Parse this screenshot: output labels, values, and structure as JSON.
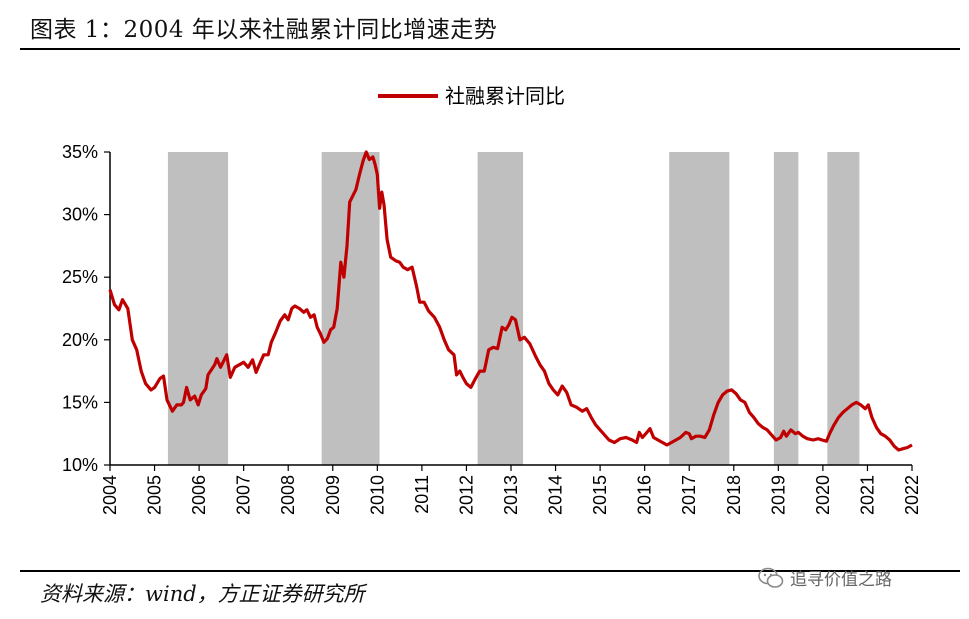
{
  "figure": {
    "title": "图表 1：2004 年以来社融累计同比增速走势",
    "source": "资料来源：wind，方正证券研究所",
    "watermark": "追寻价值之路"
  },
  "chart_data": {
    "type": "line",
    "title": "",
    "xlabel": "",
    "ylabel": "",
    "x_unit": "year",
    "xlim": [
      2004,
      2022
    ],
    "ylim": [
      10,
      35
    ],
    "y_ticks": [
      "10%",
      "15%",
      "20%",
      "25%",
      "30%",
      "35%"
    ],
    "x_ticks": [
      "2004",
      "2005",
      "2006",
      "2007",
      "2008",
      "2009",
      "2010",
      "2011",
      "2012",
      "2013",
      "2014",
      "2015",
      "2016",
      "2017",
      "2018",
      "2019",
      "2020",
      "2021",
      "2022"
    ],
    "legend": {
      "position": "top-center",
      "entries": [
        "社融累计同比"
      ]
    },
    "grid": false,
    "line_color": "#C00000",
    "shade_color": "#BFBFBF",
    "shaded_periods": [
      [
        2005.3,
        2006.65
      ],
      [
        2008.75,
        2010.05
      ],
      [
        2012.25,
        2013.27
      ],
      [
        2016.55,
        2017.9
      ],
      [
        2018.9,
        2019.45
      ],
      [
        2020.1,
        2020.82
      ]
    ],
    "series": [
      {
        "name": "社融累计同比",
        "points": [
          [
            2004.0,
            24.0
          ],
          [
            2004.1,
            22.8
          ],
          [
            2004.2,
            22.4
          ],
          [
            2004.28,
            23.2
          ],
          [
            2004.4,
            22.5
          ],
          [
            2004.5,
            20.0
          ],
          [
            2004.6,
            19.2
          ],
          [
            2004.7,
            17.5
          ],
          [
            2004.8,
            16.5
          ],
          [
            2004.92,
            16.0
          ],
          [
            2005.0,
            16.2
          ],
          [
            2005.12,
            16.9
          ],
          [
            2005.2,
            17.1
          ],
          [
            2005.28,
            15.2
          ],
          [
            2005.4,
            14.3
          ],
          [
            2005.5,
            14.8
          ],
          [
            2005.6,
            14.8
          ],
          [
            2005.65,
            15.0
          ],
          [
            2005.72,
            16.2
          ],
          [
            2005.8,
            15.2
          ],
          [
            2005.9,
            15.5
          ],
          [
            2005.98,
            14.8
          ],
          [
            2006.05,
            15.6
          ],
          [
            2006.15,
            16.1
          ],
          [
            2006.2,
            17.2
          ],
          [
            2006.35,
            18.0
          ],
          [
            2006.4,
            18.5
          ],
          [
            2006.48,
            17.8
          ],
          [
            2006.55,
            18.3
          ],
          [
            2006.62,
            18.8
          ],
          [
            2006.7,
            17.0
          ],
          [
            2006.8,
            17.8
          ],
          [
            2006.9,
            18.0
          ],
          [
            2007.0,
            18.2
          ],
          [
            2007.1,
            17.8
          ],
          [
            2007.2,
            18.4
          ],
          [
            2007.28,
            17.4
          ],
          [
            2007.35,
            18.0
          ],
          [
            2007.45,
            18.8
          ],
          [
            2007.55,
            18.8
          ],
          [
            2007.62,
            19.8
          ],
          [
            2007.72,
            20.6
          ],
          [
            2007.82,
            21.5
          ],
          [
            2007.92,
            22.0
          ],
          [
            2008.0,
            21.6
          ],
          [
            2008.08,
            22.5
          ],
          [
            2008.15,
            22.7
          ],
          [
            2008.25,
            22.5
          ],
          [
            2008.35,
            22.2
          ],
          [
            2008.42,
            22.4
          ],
          [
            2008.5,
            21.8
          ],
          [
            2008.58,
            22.0
          ],
          [
            2008.65,
            21.0
          ],
          [
            2008.72,
            20.5
          ],
          [
            2008.8,
            19.8
          ],
          [
            2008.88,
            20.1
          ],
          [
            2008.95,
            20.8
          ],
          [
            2009.02,
            21.0
          ],
          [
            2009.1,
            22.5
          ],
          [
            2009.18,
            26.2
          ],
          [
            2009.25,
            25.0
          ],
          [
            2009.32,
            27.5
          ],
          [
            2009.38,
            31.0
          ],
          [
            2009.45,
            31.5
          ],
          [
            2009.52,
            32.0
          ],
          [
            2009.6,
            33.2
          ],
          [
            2009.68,
            34.3
          ],
          [
            2009.75,
            35.0
          ],
          [
            2009.82,
            34.4
          ],
          [
            2009.9,
            34.6
          ],
          [
            2009.95,
            34.0
          ],
          [
            2010.0,
            33.2
          ],
          [
            2010.05,
            30.5
          ],
          [
            2010.1,
            31.8
          ],
          [
            2010.15,
            30.8
          ],
          [
            2010.22,
            28.0
          ],
          [
            2010.3,
            26.6
          ],
          [
            2010.42,
            26.3
          ],
          [
            2010.5,
            26.2
          ],
          [
            2010.58,
            25.8
          ],
          [
            2010.68,
            25.6
          ],
          [
            2010.78,
            25.8
          ],
          [
            2010.88,
            24.3
          ],
          [
            2010.95,
            23.0
          ],
          [
            2011.05,
            23.0
          ],
          [
            2011.15,
            22.3
          ],
          [
            2011.28,
            21.8
          ],
          [
            2011.4,
            21.0
          ],
          [
            2011.5,
            20.0
          ],
          [
            2011.6,
            19.2
          ],
          [
            2011.72,
            18.8
          ],
          [
            2011.78,
            17.2
          ],
          [
            2011.85,
            17.5
          ],
          [
            2011.92,
            17.0
          ],
          [
            2012.0,
            16.5
          ],
          [
            2012.1,
            16.2
          ],
          [
            2012.2,
            16.9
          ],
          [
            2012.3,
            17.5
          ],
          [
            2012.4,
            17.5
          ],
          [
            2012.5,
            19.2
          ],
          [
            2012.6,
            19.4
          ],
          [
            2012.7,
            19.3
          ],
          [
            2012.8,
            21.0
          ],
          [
            2012.88,
            20.8
          ],
          [
            2012.95,
            21.2
          ],
          [
            2013.02,
            21.8
          ],
          [
            2013.1,
            21.6
          ],
          [
            2013.2,
            20.0
          ],
          [
            2013.3,
            20.2
          ],
          [
            2013.42,
            19.7
          ],
          [
            2013.55,
            18.7
          ],
          [
            2013.65,
            18.0
          ],
          [
            2013.75,
            17.5
          ],
          [
            2013.85,
            16.5
          ],
          [
            2013.95,
            16.0
          ],
          [
            2014.05,
            15.6
          ],
          [
            2014.15,
            16.3
          ],
          [
            2014.25,
            15.8
          ],
          [
            2014.35,
            14.8
          ],
          [
            2014.48,
            14.6
          ],
          [
            2014.6,
            14.3
          ],
          [
            2014.7,
            14.5
          ],
          [
            2014.8,
            13.8
          ],
          [
            2014.9,
            13.2
          ],
          [
            2015.0,
            12.8
          ],
          [
            2015.1,
            12.4
          ],
          [
            2015.2,
            12.0
          ],
          [
            2015.32,
            11.8
          ],
          [
            2015.45,
            12.1
          ],
          [
            2015.58,
            12.2
          ],
          [
            2015.72,
            12.0
          ],
          [
            2015.82,
            11.8
          ],
          [
            2015.88,
            12.6
          ],
          [
            2015.95,
            12.2
          ],
          [
            2016.05,
            12.6
          ],
          [
            2016.12,
            12.9
          ],
          [
            2016.2,
            12.2
          ],
          [
            2016.3,
            12.0
          ],
          [
            2016.4,
            11.8
          ],
          [
            2016.5,
            11.6
          ],
          [
            2016.6,
            11.8
          ],
          [
            2016.7,
            12.0
          ],
          [
            2016.8,
            12.2
          ],
          [
            2016.92,
            12.6
          ],
          [
            2017.0,
            12.5
          ],
          [
            2017.05,
            12.1
          ],
          [
            2017.15,
            12.3
          ],
          [
            2017.25,
            12.3
          ],
          [
            2017.35,
            12.2
          ],
          [
            2017.45,
            12.8
          ],
          [
            2017.55,
            14.0
          ],
          [
            2017.65,
            15.0
          ],
          [
            2017.75,
            15.6
          ],
          [
            2017.85,
            15.9
          ],
          [
            2017.95,
            16.0
          ],
          [
            2018.05,
            15.7
          ],
          [
            2018.15,
            15.2
          ],
          [
            2018.25,
            15.0
          ],
          [
            2018.35,
            14.2
          ],
          [
            2018.45,
            13.8
          ],
          [
            2018.55,
            13.3
          ],
          [
            2018.65,
            13.0
          ],
          [
            2018.75,
            12.8
          ],
          [
            2018.85,
            12.4
          ],
          [
            2018.95,
            12.0
          ],
          [
            2019.05,
            12.2
          ],
          [
            2019.12,
            12.7
          ],
          [
            2019.18,
            12.3
          ],
          [
            2019.28,
            12.8
          ],
          [
            2019.38,
            12.5
          ],
          [
            2019.45,
            12.6
          ],
          [
            2019.55,
            12.3
          ],
          [
            2019.65,
            12.1
          ],
          [
            2019.78,
            12.0
          ],
          [
            2019.9,
            12.1
          ],
          [
            2019.98,
            12.0
          ],
          [
            2020.08,
            11.9
          ],
          [
            2020.15,
            12.5
          ],
          [
            2020.25,
            13.2
          ],
          [
            2020.35,
            13.8
          ],
          [
            2020.45,
            14.2
          ],
          [
            2020.55,
            14.5
          ],
          [
            2020.65,
            14.8
          ],
          [
            2020.75,
            15.0
          ],
          [
            2020.85,
            14.8
          ],
          [
            2020.95,
            14.5
          ],
          [
            2021.02,
            14.8
          ],
          [
            2021.1,
            13.8
          ],
          [
            2021.2,
            13.0
          ],
          [
            2021.3,
            12.5
          ],
          [
            2021.4,
            12.3
          ],
          [
            2021.5,
            12.0
          ],
          [
            2021.6,
            11.5
          ],
          [
            2021.7,
            11.2
          ],
          [
            2021.8,
            11.3
          ],
          [
            2021.9,
            11.4
          ],
          [
            2022.0,
            11.6
          ]
        ]
      }
    ]
  }
}
